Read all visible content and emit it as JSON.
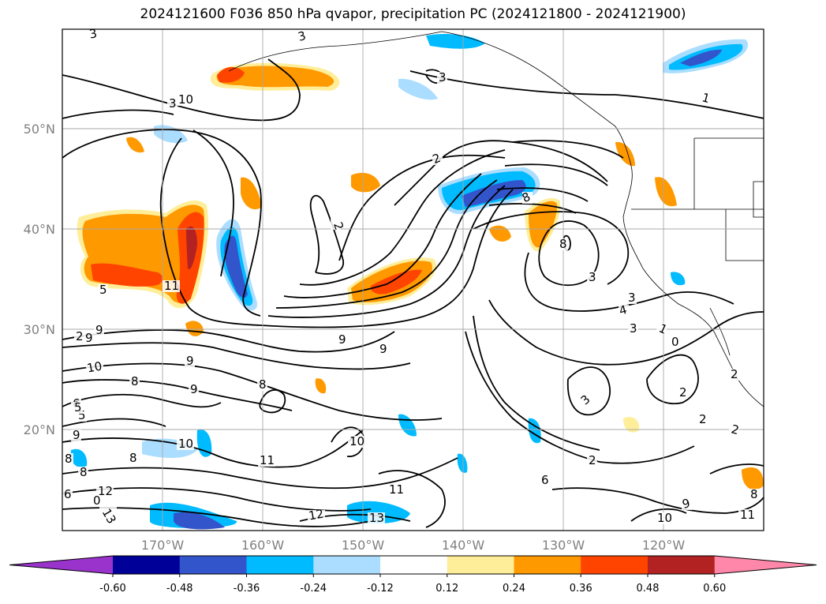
{
  "title": "2024121600 F036 850 hPa qvapor, precipitation PC (2024121800 - 2024121900)",
  "lat_labels": [
    "50°N",
    "40°N",
    "30°N",
    "20°N"
  ],
  "lon_labels": [
    "170°W",
    "160°W",
    "150°W",
    "140°W",
    "130°W",
    "120°W"
  ],
  "colorbar": {
    "colors": [
      "#9933cc",
      "#000099",
      "#3355cc",
      "#00bbff",
      "#aaddff",
      "#ffffff",
      "#ffee99",
      "#ff9900",
      "#ff4400",
      "#b22222",
      "#ff88aa"
    ],
    "ticks": [
      "-0.60",
      "-0.48",
      "-0.36",
      "-0.24",
      "-0.12",
      "0.12",
      "0.24",
      "0.36",
      "0.48",
      "0.60"
    ]
  },
  "contour_labels": [
    "3",
    "3",
    "3",
    "3",
    "1",
    "2",
    "2",
    "8",
    "8",
    "3",
    "3",
    "4",
    "3",
    "1",
    "0",
    "2",
    "2",
    "2",
    "2",
    "3",
    "2",
    "6",
    "9",
    "8",
    "10",
    "9",
    "8",
    "9",
    "9",
    "9",
    "6",
    "5",
    "9",
    "5",
    "10",
    "8",
    "8",
    "6",
    "10",
    "11",
    "10",
    "11",
    "8",
    "9",
    "12",
    "13",
    "12",
    "13",
    "11",
    "9",
    "10",
    "11",
    "8",
    "5",
    "0",
    "2"
  ]
}
